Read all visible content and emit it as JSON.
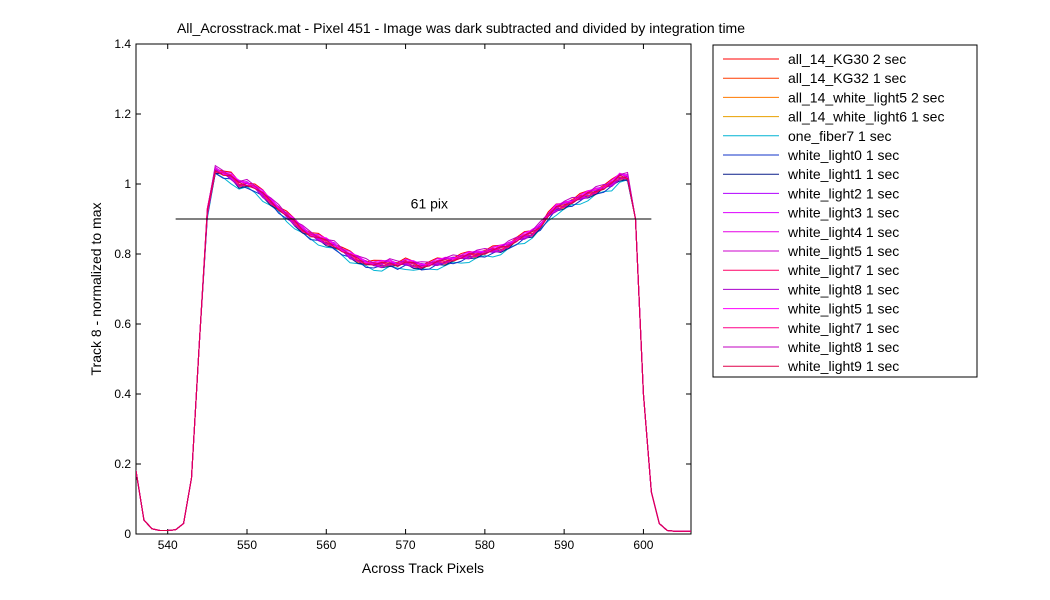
{
  "chart_data": {
    "type": "line",
    "title": "All_Acrosstrack.mat - Pixel 451 - Image was dark subtracted and divided by integration time",
    "xlabel": "Across Track Pixels",
    "ylabel": "Track 8 - normalized to max",
    "xlim": [
      536,
      606
    ],
    "ylim": [
      0,
      1.4
    ],
    "xticks": [
      540,
      550,
      560,
      570,
      580,
      590,
      600
    ],
    "yticks": [
      0,
      0.2,
      0.4,
      0.6,
      0.8,
      1,
      1.2,
      1.4
    ],
    "ytick_labels": [
      "0",
      "0.2",
      "0.4",
      "0.6",
      "0.8",
      "1",
      "1.2",
      "1.4"
    ],
    "grid": false,
    "legend_position": "outside-top-right",
    "x": [
      536,
      537,
      538,
      539,
      540,
      541,
      542,
      543,
      544,
      545,
      546,
      547,
      548,
      549,
      550,
      551,
      552,
      553,
      554,
      555,
      556,
      557,
      558,
      559,
      560,
      561,
      562,
      563,
      564,
      565,
      566,
      567,
      568,
      569,
      570,
      571,
      572,
      573,
      574,
      575,
      576,
      577,
      578,
      579,
      580,
      581,
      582,
      583,
      584,
      585,
      586,
      587,
      588,
      589,
      590,
      591,
      592,
      593,
      594,
      595,
      596,
      597,
      598,
      599,
      600,
      601,
      602,
      603,
      604,
      605,
      606
    ],
    "base_profile": [
      0.18,
      0.04,
      0.015,
      0.01,
      0.01,
      0.012,
      0.03,
      0.16,
      0.55,
      0.92,
      1.04,
      1.03,
      1.02,
      1.0,
      1.0,
      0.99,
      0.97,
      0.95,
      0.93,
      0.91,
      0.89,
      0.87,
      0.855,
      0.845,
      0.835,
      0.825,
      0.81,
      0.795,
      0.785,
      0.775,
      0.77,
      0.77,
      0.775,
      0.77,
      0.775,
      0.77,
      0.765,
      0.77,
      0.775,
      0.78,
      0.785,
      0.79,
      0.795,
      0.8,
      0.805,
      0.81,
      0.815,
      0.825,
      0.84,
      0.85,
      0.86,
      0.88,
      0.91,
      0.93,
      0.94,
      0.95,
      0.96,
      0.97,
      0.98,
      0.99,
      1.0,
      1.02,
      1.02,
      0.9,
      0.4,
      0.12,
      0.03,
      0.01,
      0.008,
      0.008,
      0.008
    ],
    "series": [
      {
        "name": "all_14_KG30 2 sec",
        "color": "#ff0000",
        "offset": 0.008
      },
      {
        "name": "all_14_KG32 1 sec",
        "color": "#ff3b00",
        "offset": 0.0
      },
      {
        "name": "all_14_white_light5 2 sec",
        "color": "#ff7a00",
        "offset": 0.004
      },
      {
        "name": "all_14_white_light6 1 sec",
        "color": "#e8a000",
        "offset": -0.004
      },
      {
        "name": "one_fiber7 1 sec",
        "color": "#00b4d4",
        "offset": -0.014
      },
      {
        "name": "white_light0 1 sec",
        "color": "#1033c8",
        "offset": -0.008
      },
      {
        "name": "white_light1 1 sec",
        "color": "#0a1f8a",
        "offset": -0.006
      },
      {
        "name": "white_light2 1 sec",
        "color": "#b000ff",
        "offset": 0.002
      },
      {
        "name": "white_light3 1 sec",
        "color": "#dd00ff",
        "offset": 0.006
      },
      {
        "name": "white_light4 1 sec",
        "color": "#e600e6",
        "offset": -0.002
      },
      {
        "name": "white_light5 1 sec",
        "color": "#cc00cc",
        "offset": 0.003
      },
      {
        "name": "white_light7 1 sec",
        "color": "#ff0066",
        "offset": 0.001
      },
      {
        "name": "white_light8 1 sec",
        "color": "#aa00cc",
        "offset": -0.003
      },
      {
        "name": "white_light5 1 sec",
        "color": "#ff00ff",
        "offset": 0.005
      },
      {
        "name": "white_light7 1 sec",
        "color": "#ff0088",
        "offset": -0.001
      },
      {
        "name": "white_light8 1 sec",
        "color": "#c000c0",
        "offset": 0.007
      },
      {
        "name": "white_light9 1 sec",
        "color": "#e0004a",
        "offset": 0.0
      }
    ],
    "annotation": {
      "text": "61 pix",
      "line_x": [
        541,
        601
      ],
      "line_y": 0.9,
      "text_x": 573,
      "text_y": 0.93
    }
  }
}
